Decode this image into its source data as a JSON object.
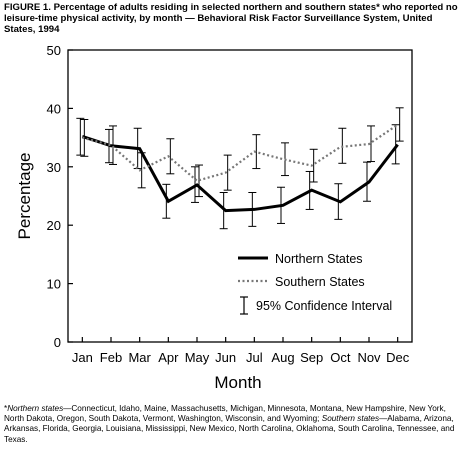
{
  "caption": "FIGURE 1. Percentage of adults residing in selected northern and southern states* who reported no leisure-time physical activity, by month — Behavioral Risk Factor Surveillance System, United States, 1994",
  "chart_data": {
    "type": "line",
    "xlabel": "Month",
    "ylabel": "Percentage",
    "ylim": [
      0,
      50
    ],
    "yticks": [
      0,
      10,
      20,
      30,
      40,
      50
    ],
    "categories": [
      "Jan",
      "Feb",
      "Mar",
      "Apr",
      "May",
      "Jun",
      "Jul",
      "Aug",
      "Sep",
      "Oct",
      "Nov",
      "Dec"
    ],
    "grid": false,
    "legend_position": "bottom-right",
    "series": [
      {
        "name": "Northern States",
        "style": "solid",
        "values": [
          35.2,
          33.6,
          33.1,
          24.1,
          26.9,
          22.5,
          22.7,
          23.4,
          26.0,
          24.0,
          27.4,
          33.8
        ],
        "ci_low": [
          32.0,
          30.7,
          29.7,
          21.2,
          23.9,
          19.4,
          19.8,
          20.3,
          22.7,
          21.0,
          24.1,
          30.5
        ],
        "ci_high": [
          38.3,
          36.4,
          36.6,
          27.0,
          30.0,
          25.6,
          25.6,
          26.5,
          29.2,
          27.1,
          30.8,
          37.2
        ]
      },
      {
        "name": "Southern States",
        "style": "dotted",
        "values": [
          35.0,
          33.7,
          29.4,
          31.8,
          27.6,
          29.0,
          32.6,
          31.3,
          30.2,
          33.4,
          33.9,
          37.2
        ],
        "ci_low": [
          31.8,
          30.4,
          26.4,
          28.8,
          24.9,
          26.0,
          29.7,
          28.5,
          27.4,
          30.6,
          30.9,
          34.4
        ],
        "ci_high": [
          38.1,
          37.0,
          32.4,
          34.8,
          30.3,
          32.0,
          35.5,
          34.1,
          33.0,
          36.6,
          37.0,
          40.1
        ]
      }
    ],
    "legend_ci_label": "95% Confidence Interval"
  },
  "footnote": {
    "marker": "*",
    "north_label": "Northern states",
    "north_text": "—Connecticut, Idaho, Maine, Massachusetts, Michigan, Minnesota, Montana, New Hampshire, New York, North Dakota, Oregon, South Dakota, Vermont, Washington, Wisconsin, and Wyoming; ",
    "south_label": "Southern states",
    "south_text": "—Alabama, Arizona, Arkansas, Florida, Georgia, Louisiana, Mississippi, New Mexico, North Carolina, Oklahoma, South Carolina, Tennessee, and Texas."
  }
}
